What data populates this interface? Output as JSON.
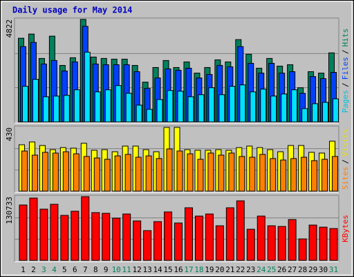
{
  "title": "Daily usage for May 2014",
  "chart_data": [
    {
      "type": "bar",
      "ylim": [
        0,
        4822
      ],
      "yticks": [
        4822
      ],
      "grid": true,
      "legend_separator": "/",
      "series": [
        {
          "name": "Pages",
          "color": "#00e0ff",
          "label_color": "#00c0e0",
          "values": [
            1673,
            2001,
            1181,
            1214,
            1247,
            1509,
            3280,
            1411,
            1509,
            1706,
            1345,
            787,
            590,
            1050,
            1476,
            1443,
            1181,
            1279,
            1607,
            1279,
            1673,
            1739,
            1411,
            1542,
            1214,
            1312,
            1509,
            623,
            853,
            918,
            1082
          ]
        },
        {
          "name": "Files",
          "color": "#0040ff",
          "label_color": "#0040ff",
          "values": [
            3543,
            3740,
            2723,
            2887,
            2395,
            2821,
            4494,
            2723,
            2690,
            2690,
            2690,
            2362,
            1575,
            2067,
            2493,
            2428,
            2526,
            2067,
            2231,
            2657,
            2591,
            3543,
            2755,
            2296,
            2755,
            2296,
            2362,
            1345,
            2132,
            2034,
            2329
          ]
        },
        {
          "name": "Hits",
          "color": "#00805c",
          "label_color": "#00805c",
          "values": [
            3936,
            4133,
            2985,
            4035,
            2657,
            3018,
            4822,
            3051,
            2985,
            2952,
            2952,
            2657,
            1870,
            2559,
            2887,
            2559,
            2821,
            2296,
            2559,
            2919,
            2821,
            3871,
            3182,
            2526,
            2985,
            2624,
            2690,
            1607,
            2362,
            2296,
            3247
          ]
        }
      ]
    },
    {
      "type": "bar",
      "ylim": [
        0,
        430
      ],
      "yticks": [
        430
      ],
      "grid": true,
      "legend_separator": "/",
      "series": [
        {
          "name": "Sites",
          "color": "#ff8000",
          "label_color": "#ff8000",
          "values": [
            271,
            243,
            262,
            257,
            266,
            252,
            234,
            224,
            215,
            238,
            248,
            229,
            238,
            220,
            285,
            271,
            252,
            215,
            257,
            243,
            257,
            234,
            229,
            248,
            220,
            210,
            220,
            229,
            206,
            215,
            234
          ]
        },
        {
          "name": "Visits",
          "color": "#ffff00",
          "label_color": "#e0e000",
          "values": [
            313,
            332,
            308,
            280,
            294,
            290,
            323,
            276,
            280,
            266,
            304,
            304,
            280,
            266,
            430,
            430,
            280,
            276,
            276,
            280,
            276,
            294,
            304,
            294,
            280,
            266,
            308,
            308,
            262,
            257,
            337
          ]
        }
      ]
    },
    {
      "type": "bar",
      "ylim": [
        0,
        130733
      ],
      "yticks": [
        130733
      ],
      "grid": true,
      "categories": [
        "1",
        "2",
        "3",
        "4",
        "5",
        "6",
        "7",
        "8",
        "9",
        "10",
        "11",
        "12",
        "13",
        "14",
        "15",
        "16",
        "17",
        "18",
        "19",
        "20",
        "21",
        "22",
        "23",
        "24",
        "25",
        "26",
        "27",
        "28",
        "29",
        "30",
        "31"
      ],
      "category_colors": [
        "#000000",
        "#000000",
        "#00805c",
        "#00805c",
        "#000000",
        "#000000",
        "#000000",
        "#000000",
        "#000000",
        "#00805c",
        "#00805c",
        "#000000",
        "#000000",
        "#000000",
        "#000000",
        "#000000",
        "#00805c",
        "#00805c",
        "#000000",
        "#000000",
        "#000000",
        "#000000",
        "#000000",
        "#00805c",
        "#00805c",
        "#000000",
        "#000000",
        "#000000",
        "#000000",
        "#000000",
        "#00805c"
      ],
      "series": [
        {
          "name": "KBytes",
          "color": "#ff0000",
          "label_color": "#ff0000",
          "values": [
            113681,
            127890,
            105155,
            115102,
            92366,
            100892,
            130733,
            98050,
            96629,
            86682,
            95208,
            80997,
            61103,
            79576,
            99471,
            76734,
            107997,
            90945,
            95208,
            71051,
            107997,
            122208,
            63945,
            90945,
            71051,
            69629,
            83839,
            44051,
            72471,
            68208,
            65366
          ]
        }
      ]
    }
  ]
}
